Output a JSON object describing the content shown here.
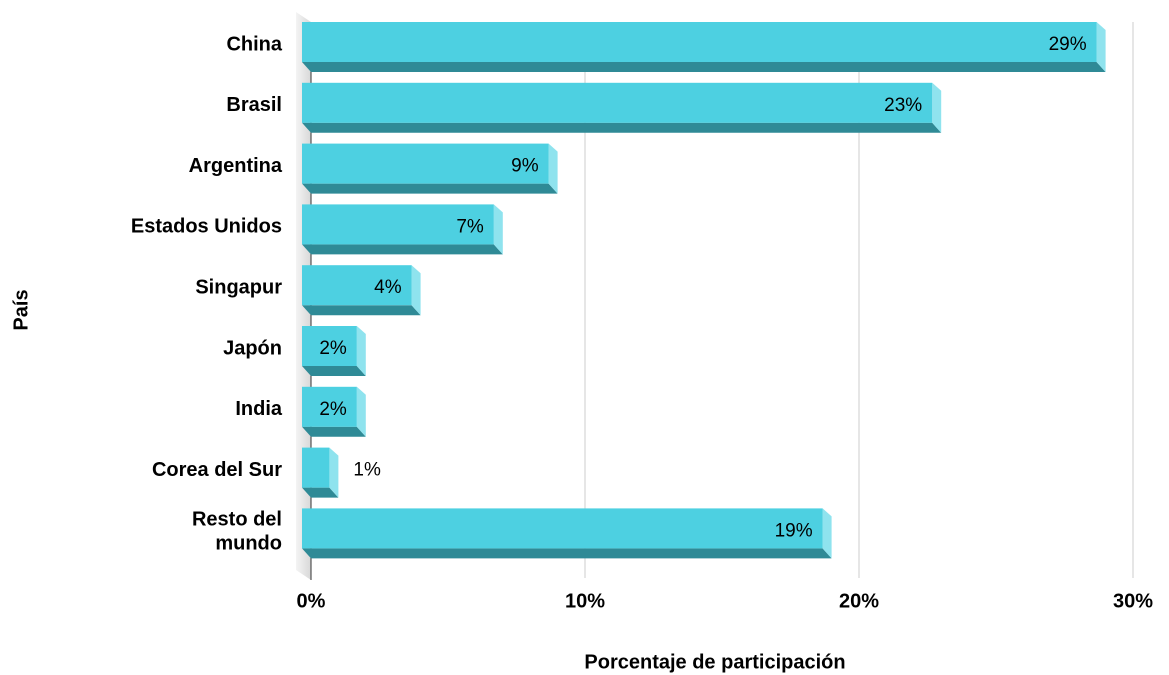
{
  "chart_data": {
    "type": "bar",
    "orientation": "horizontal",
    "x_label": "Porcentaje de participación",
    "y_label": "País",
    "categories": [
      "China",
      "Brasil",
      "Argentina",
      "Estados Unidos",
      "Singapur",
      "Japón",
      "India",
      "Corea del Sur",
      "Resto del mundo"
    ],
    "values": [
      29,
      23,
      9,
      7,
      4,
      2,
      2,
      1,
      19
    ],
    "value_labels": [
      "29%",
      "23%",
      "9%",
      "7%",
      "4%",
      "2%",
      "2%",
      "1%",
      "19%"
    ],
    "color": "#4dd0e1",
    "xlim": [
      0,
      30
    ],
    "xticks": [
      {
        "value": 0,
        "label": "0%"
      },
      {
        "value": 10,
        "label": "10%"
      },
      {
        "value": 20,
        "label": "20%"
      },
      {
        "value": 30,
        "label": "30%"
      }
    ],
    "grid": true
  }
}
